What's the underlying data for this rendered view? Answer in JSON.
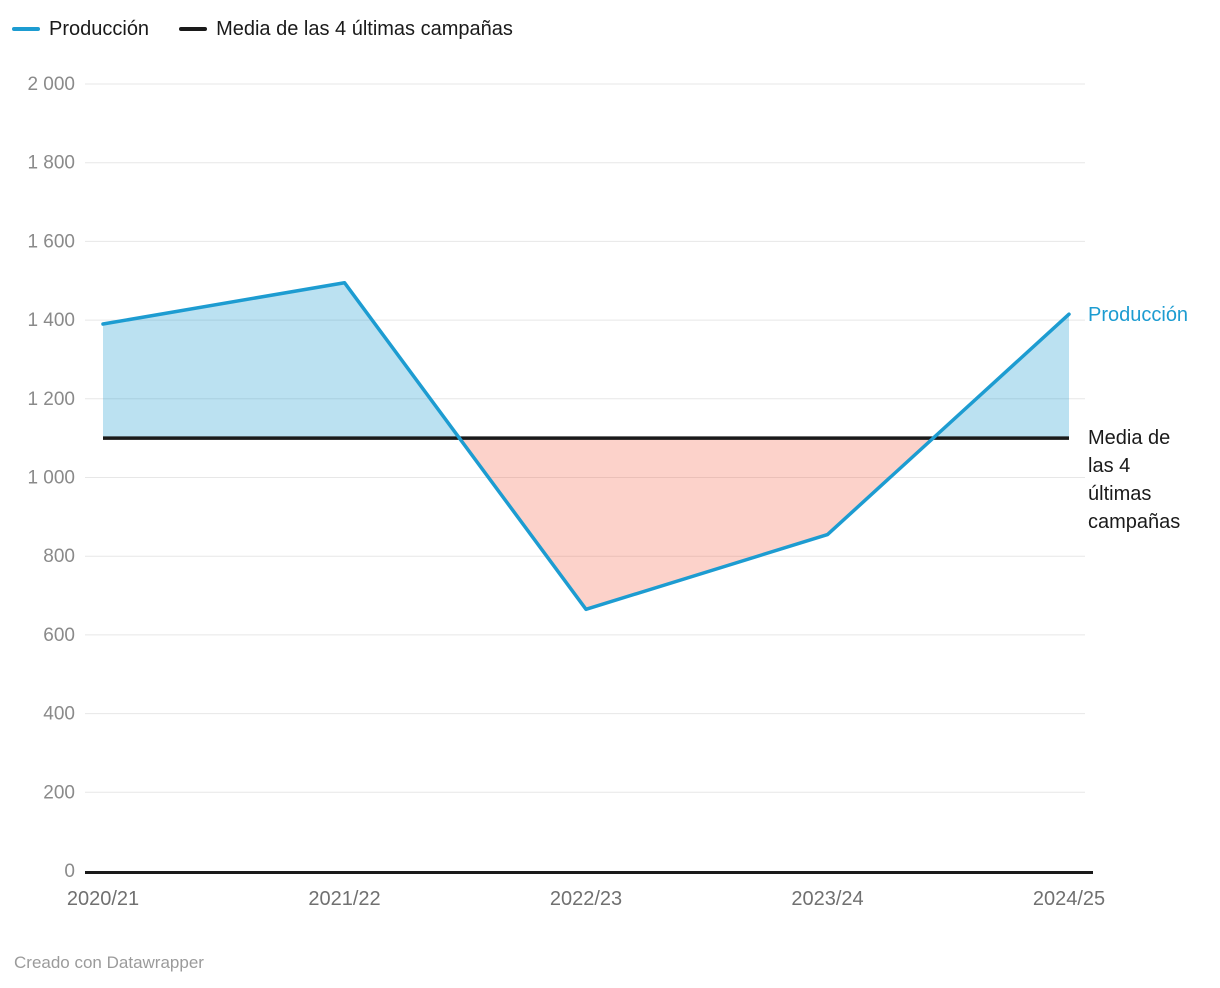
{
  "legend": {
    "items": [
      {
        "label": "Producción",
        "color": "#1d9cd1"
      },
      {
        "label": "Media de las 4 últimas campañas",
        "color": "#1a1a1a"
      }
    ]
  },
  "annotations": {
    "produccion": "Producción",
    "media": "Media de las 4 últimas campañas"
  },
  "footer": {
    "text": "Creado con Datawrapper"
  },
  "chart_data": {
    "type": "line",
    "title": "",
    "x_categories": [
      "2020/21",
      "2021/22",
      "2022/23",
      "2023/24",
      "2024/25"
    ],
    "series": [
      {
        "name": "Producción",
        "color": "#1d9cd1",
        "values": [
          1390,
          1495,
          665,
          855,
          1415
        ]
      },
      {
        "name": "Media de las 4 últimas campañas",
        "color": "#1a1a1a",
        "role": "baseline",
        "values": [
          1100,
          1100,
          1100,
          1100,
          1100
        ]
      }
    ],
    "ylim": [
      0,
      2000
    ],
    "ytick_step": 200,
    "yticks": [
      0,
      200,
      400,
      600,
      800,
      1000,
      1200,
      1400,
      1600,
      1800,
      2000
    ],
    "ytick_labels": [
      "0",
      "200",
      "400",
      "600",
      "800",
      "1 000",
      "1 200",
      "1 400",
      "1 600",
      "1 800",
      "2 000"
    ],
    "grid": true,
    "legend_position": "top-left",
    "fill_above": {
      "color": "#1d9cd1",
      "opacity": 0.3
    },
    "fill_below": {
      "color": "#f4583c",
      "opacity": 0.27
    },
    "axis_color": "#1a1a1a",
    "grid_color": "#e7e7e7",
    "ytick_color": "#8a8a8a",
    "xtick_color": "#707070"
  }
}
